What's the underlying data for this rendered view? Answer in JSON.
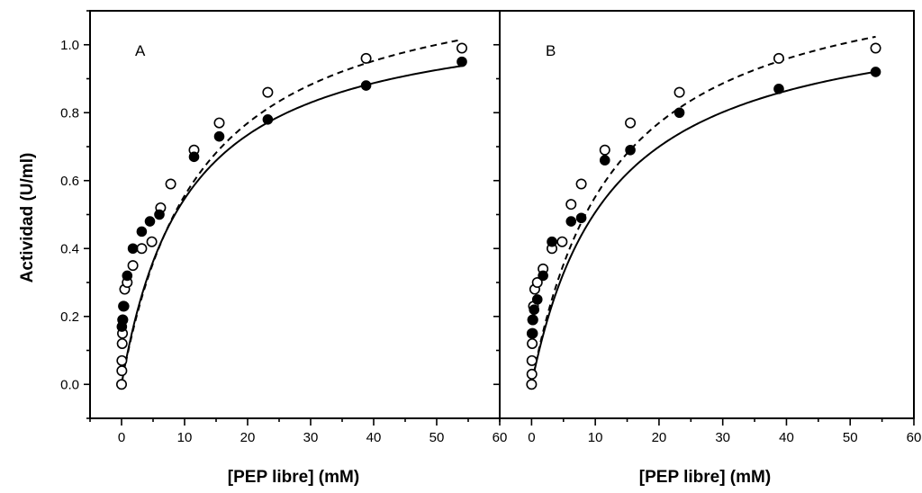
{
  "chart_data": [
    {
      "type": "scatter",
      "panel_label": "A",
      "xlabel": "[PEP libre] (mM)",
      "ylabel": "Actividad (U/ml)",
      "xlim": [
        -5,
        60
      ],
      "ylim": [
        -0.1,
        1.1
      ],
      "xticks": [
        0,
        10,
        20,
        30,
        40,
        50,
        60
      ],
      "xtick_labels": [
        "0",
        "10",
        "20",
        "30",
        "40",
        "50",
        "60"
      ],
      "yticks": [
        0.0,
        0.2,
        0.4,
        0.6,
        0.8,
        1.0
      ],
      "ytick_labels": [
        "0.0",
        "0.2",
        "0.4",
        "0.6",
        "0.8",
        "1.0"
      ],
      "series": [
        {
          "marker": "filled",
          "fit_style": "solid",
          "fit_curve": {
            "vmax": 1.12,
            "km": 10.5
          },
          "x": [
            0.05,
            0.15,
            0.4,
            0.9,
            1.8,
            3.2,
            4.5,
            6.0,
            11.5,
            15.5,
            23.2,
            38.8,
            54.0
          ],
          "y": [
            0.17,
            0.19,
            0.23,
            0.32,
            0.4,
            0.45,
            0.48,
            0.5,
            0.67,
            0.73,
            0.78,
            0.88,
            0.95
          ]
        },
        {
          "marker": "open",
          "fit_style": "dashed",
          "fit_curve": {
            "vmax": 1.25,
            "km": 12.5
          },
          "x": [
            0.0,
            0.05,
            0.05,
            0.1,
            0.15,
            0.2,
            0.3,
            0.5,
            0.9,
            1.8,
            3.2,
            4.8,
            6.2,
            7.8,
            11.5,
            15.5,
            23.2,
            38.8,
            54.0
          ],
          "y": [
            0.0,
            0.04,
            0.07,
            0.12,
            0.15,
            0.19,
            0.23,
            0.28,
            0.3,
            0.35,
            0.4,
            0.42,
            0.52,
            0.59,
            0.69,
            0.77,
            0.86,
            0.96,
            0.99
          ]
        }
      ]
    },
    {
      "type": "scatter",
      "panel_label": "B",
      "xlabel": "[PEP libre] (mM)",
      "ylabel": "",
      "xlim": [
        -5,
        60
      ],
      "ylim": [
        -0.1,
        1.1
      ],
      "xticks": [
        0,
        10,
        20,
        30,
        40,
        50,
        60
      ],
      "xtick_labels": [
        "0",
        "10",
        "20",
        "30",
        "40",
        "50",
        "60"
      ],
      "yticks": [
        0.0,
        0.2,
        0.4,
        0.6,
        0.8,
        1.0
      ],
      "ytick_labels": [],
      "series": [
        {
          "marker": "filled",
          "fit_style": "solid",
          "fit_curve": {
            "vmax": 1.13,
            "km": 12.3
          },
          "x": [
            0.05,
            0.15,
            0.4,
            0.9,
            1.8,
            3.2,
            6.2,
            7.8,
            11.5,
            15.5,
            23.2,
            38.8,
            54.0
          ],
          "y": [
            0.15,
            0.19,
            0.22,
            0.25,
            0.32,
            0.42,
            0.48,
            0.49,
            0.66,
            0.69,
            0.8,
            0.87,
            0.92
          ]
        },
        {
          "marker": "open",
          "fit_style": "dashed",
          "fit_curve": {
            "vmax": 1.27,
            "km": 13.0
          },
          "x": [
            0.0,
            0.05,
            0.05,
            0.1,
            0.15,
            0.2,
            0.3,
            0.5,
            0.9,
            1.8,
            3.2,
            4.8,
            6.2,
            7.8,
            11.5,
            15.5,
            23.2,
            38.8,
            54.0
          ],
          "y": [
            0.0,
            0.03,
            0.07,
            0.12,
            0.15,
            0.19,
            0.23,
            0.28,
            0.3,
            0.34,
            0.4,
            0.42,
            0.53,
            0.59,
            0.69,
            0.77,
            0.86,
            0.96,
            0.99
          ]
        }
      ]
    }
  ]
}
